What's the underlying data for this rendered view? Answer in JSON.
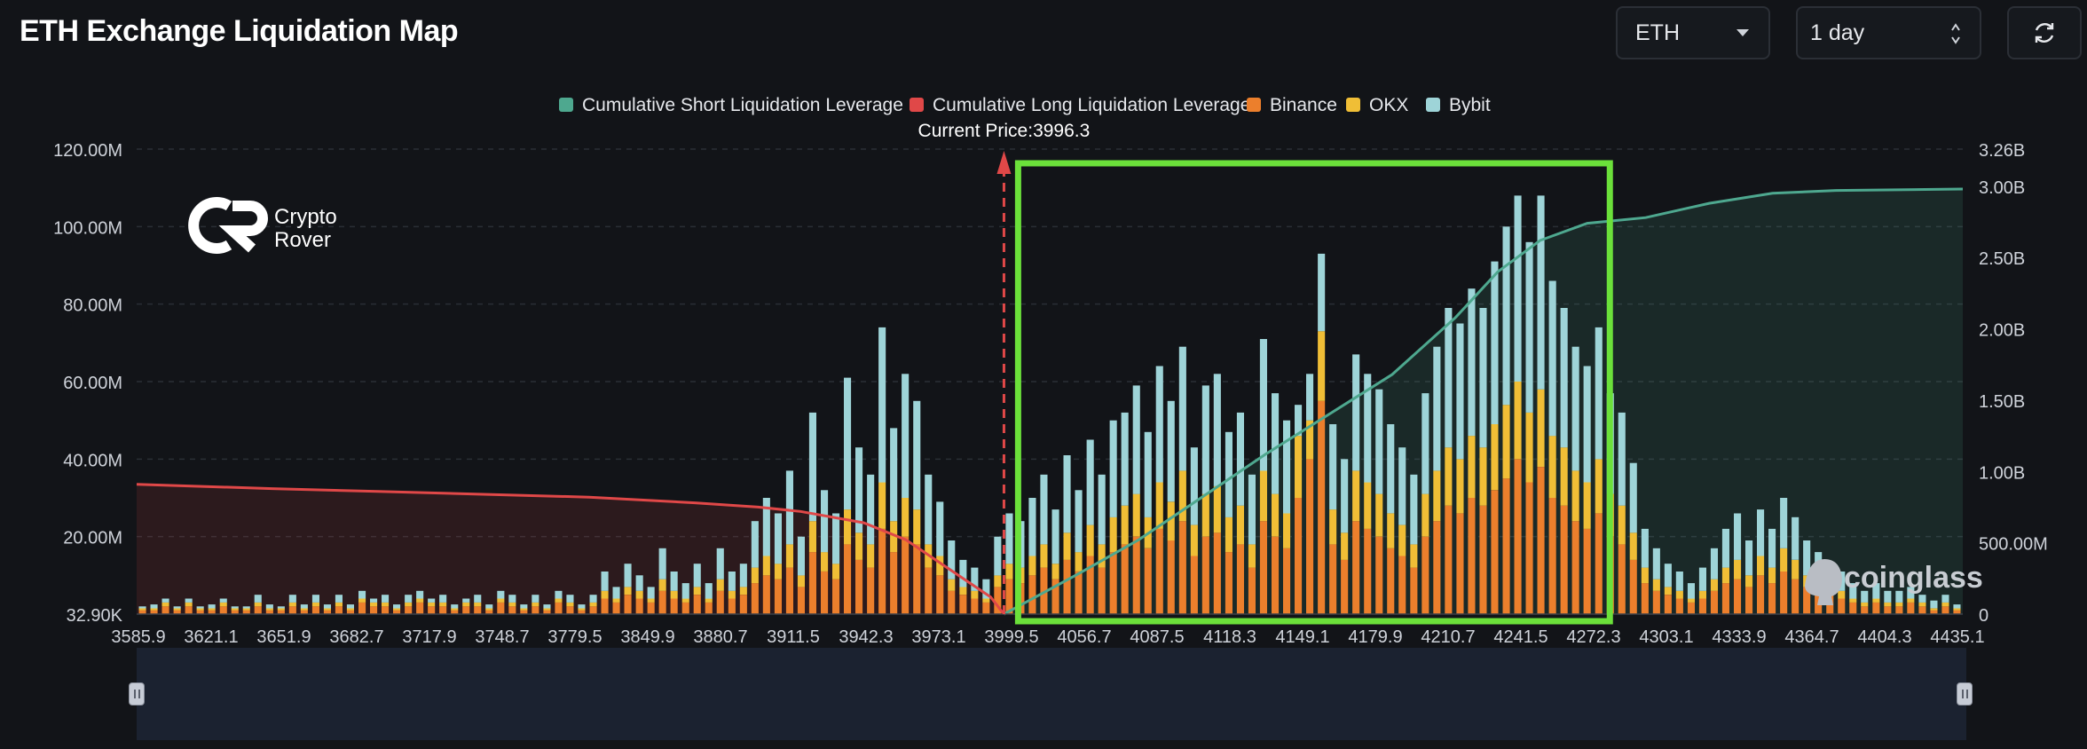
{
  "header": {
    "title": "ETH Exchange Liquidation Map",
    "coin_select": "ETH",
    "interval_select": "1 day",
    "refresh_icon": "refresh-icon"
  },
  "colors": {
    "short_cum": "#4ea88f",
    "long_cum": "#e04848",
    "binance": "#ec7f2c",
    "okx": "#f0be36",
    "bybit": "#9ed4d8",
    "highlight_box": "#6be03a",
    "background": "#121418"
  },
  "watermarks": {
    "brand_line1": "Crypto",
    "brand_line2": "Rover",
    "coinglass": "coinglass"
  },
  "chart_data": {
    "type": "bar",
    "title": "",
    "current_price_label": "Current Price:3996.3",
    "current_price": 3996.3,
    "legend": [
      {
        "name": "Cumulative Short Liquidation Leverage",
        "color": "#4ea88f"
      },
      {
        "name": "Cumulative Long Liquidation Leverage",
        "color": "#e04848"
      },
      {
        "name": "Binance",
        "color": "#ec7f2c"
      },
      {
        "name": "OKX",
        "color": "#f0be36"
      },
      {
        "name": "Bybit",
        "color": "#9ed4d8"
      }
    ],
    "x_ticks": [
      "3585.9",
      "3621.1",
      "3651.9",
      "3682.7",
      "3717.9",
      "3748.7",
      "3779.5",
      "3849.9",
      "3880.7",
      "3911.5",
      "3942.3",
      "3973.1",
      "3999.5",
      "4056.7",
      "4087.5",
      "4118.3",
      "4149.1",
      "4179.9",
      "4210.7",
      "4241.5",
      "4272.3",
      "4303.1",
      "4333.9",
      "4364.7",
      "4404.3",
      "4435.1"
    ],
    "y_left_ticks": [
      "32.90K",
      "20.00M",
      "40.00M",
      "60.00M",
      "80.00M",
      "100.00M",
      "120.00M"
    ],
    "y_left_range": [
      0,
      120
    ],
    "y_left_unit": "M",
    "y_right_ticks": [
      "0",
      "500.00M",
      "1.00B",
      "1.50B",
      "2.00B",
      "2.50B",
      "3.00B",
      "3.26B"
    ],
    "y_right_range": [
      0,
      3.26
    ],
    "y_right_unit": "B",
    "x_range": [
      3585.9,
      4450
    ],
    "bars": {
      "binance": [
        1,
        1,
        2,
        1,
        2,
        1,
        1,
        2,
        1,
        1,
        2,
        1,
        1,
        2,
        1,
        2,
        1,
        2,
        1,
        3,
        2,
        2,
        1,
        2,
        3,
        2,
        2,
        1,
        2,
        2,
        1,
        3,
        2,
        1,
        2,
        1,
        3,
        2,
        1,
        2,
        4,
        3,
        5,
        4,
        3,
        6,
        4,
        3,
        5,
        3,
        6,
        4,
        5,
        8,
        10,
        9,
        12,
        7,
        16,
        11,
        9,
        18,
        14,
        12,
        22,
        16,
        20,
        18,
        12,
        10,
        6,
        5,
        4,
        3,
        7,
        9,
        8,
        10,
        12,
        9,
        14,
        11,
        15,
        12,
        16,
        18,
        20,
        17,
        22,
        19,
        24,
        15,
        20,
        21,
        16,
        18,
        12,
        24,
        20,
        17,
        30,
        40,
        55,
        18,
        14,
        24,
        22,
        20,
        17,
        15,
        12,
        20,
        24,
        28,
        26,
        30,
        28,
        32,
        35,
        40,
        34,
        38,
        30,
        28,
        24,
        22,
        26,
        20,
        18,
        14,
        8,
        6,
        5,
        4,
        3,
        4,
        6,
        8,
        9,
        7,
        10,
        8,
        11,
        9,
        7,
        6,
        5,
        4,
        3,
        2,
        3,
        2,
        2,
        3,
        2,
        1,
        2,
        1
      ],
      "okx": [
        0.5,
        0.5,
        1,
        0.5,
        1,
        0.5,
        0.5,
        1,
        0.5,
        0.5,
        1,
        0.5,
        0.5,
        1,
        0.5,
        1,
        0.5,
        1,
        0.5,
        1,
        1,
        1,
        0.5,
        1,
        1,
        1,
        1,
        0.5,
        1,
        1,
        0.5,
        1,
        1,
        0.5,
        1,
        0.5,
        1,
        1,
        0.5,
        1,
        2,
        1,
        2,
        2,
        1,
        3,
        2,
        1,
        2,
        1,
        3,
        2,
        2,
        4,
        5,
        4,
        6,
        3,
        8,
        5,
        4,
        9,
        7,
        6,
        12,
        8,
        10,
        9,
        6,
        5,
        3,
        2,
        2,
        1,
        3,
        4,
        4,
        5,
        6,
        4,
        7,
        5,
        8,
        6,
        9,
        10,
        11,
        8,
        12,
        10,
        13,
        8,
        11,
        12,
        9,
        10,
        6,
        13,
        11,
        9,
        16,
        10,
        18,
        9,
        7,
        13,
        12,
        11,
        9,
        8,
        6,
        11,
        13,
        15,
        14,
        16,
        15,
        17,
        19,
        20,
        18,
        20,
        16,
        15,
        13,
        12,
        14,
        11,
        10,
        7,
        4,
        3,
        2,
        2,
        1,
        2,
        3,
        4,
        5,
        3,
        5,
        4,
        6,
        5,
        3,
        3,
        2,
        2,
        1,
        1,
        1,
        1,
        1,
        1,
        1,
        0.5,
        1,
        0.5
      ],
      "bybit": [
        0.5,
        1,
        1,
        0.5,
        1,
        0.5,
        1,
        1,
        0.5,
        0.5,
        2,
        1,
        0.5,
        2,
        1,
        2,
        1,
        2,
        1,
        2,
        1,
        2,
        1,
        2,
        2,
        1,
        2,
        1,
        1,
        2,
        1,
        2,
        2,
        1,
        2,
        1,
        2,
        2,
        1,
        2,
        5,
        3,
        6,
        4,
        3,
        8,
        5,
        4,
        6,
        4,
        8,
        5,
        6,
        12,
        15,
        13,
        19,
        10,
        28,
        16,
        13,
        34,
        22,
        18,
        40,
        24,
        32,
        28,
        18,
        14,
        10,
        7,
        6,
        5,
        10,
        13,
        12,
        15,
        18,
        14,
        20,
        16,
        22,
        18,
        25,
        24,
        28,
        22,
        30,
        26,
        32,
        20,
        28,
        29,
        22,
        24,
        18,
        34,
        26,
        24,
        8,
        12,
        20,
        22,
        19,
        30,
        28,
        27,
        23,
        20,
        18,
        26,
        32,
        36,
        35,
        38,
        36,
        42,
        46,
        48,
        44,
        50,
        40,
        36,
        32,
        30,
        34,
        26,
        24,
        18,
        10,
        8,
        6,
        5,
        4,
        6,
        8,
        10,
        12,
        9,
        12,
        10,
        13,
        11,
        9,
        7,
        6,
        5,
        4,
        3,
        4,
        3,
        3,
        3,
        2,
        2,
        2,
        1
      ]
    },
    "series": [
      {
        "name": "Cumulative Long Liquidation Leverage",
        "points_x": [
          3585.9,
          3650,
          3700,
          3750,
          3800,
          3850,
          3880,
          3900,
          3930,
          3950,
          3970,
          3990,
          3996.3
        ],
        "points_y_B": [
          0.91,
          0.88,
          0.86,
          0.84,
          0.82,
          0.78,
          0.75,
          0.72,
          0.64,
          0.52,
          0.32,
          0.12,
          0.0
        ]
      },
      {
        "name": "Cumulative Short Liquidation Leverage",
        "points_x": [
          3996.3,
          4030,
          4060,
          4090,
          4120,
          4150,
          4180,
          4210,
          4230,
          4250,
          4272.3,
          4300,
          4330,
          4360,
          4390,
          4450
        ],
        "points_y_B": [
          0.0,
          0.27,
          0.52,
          0.82,
          1.12,
          1.4,
          1.68,
          2.08,
          2.4,
          2.62,
          2.74,
          2.78,
          2.88,
          2.95,
          2.97,
          2.98
        ]
      }
    ],
    "highlight_range_x": [
      4003,
      4283
    ]
  }
}
